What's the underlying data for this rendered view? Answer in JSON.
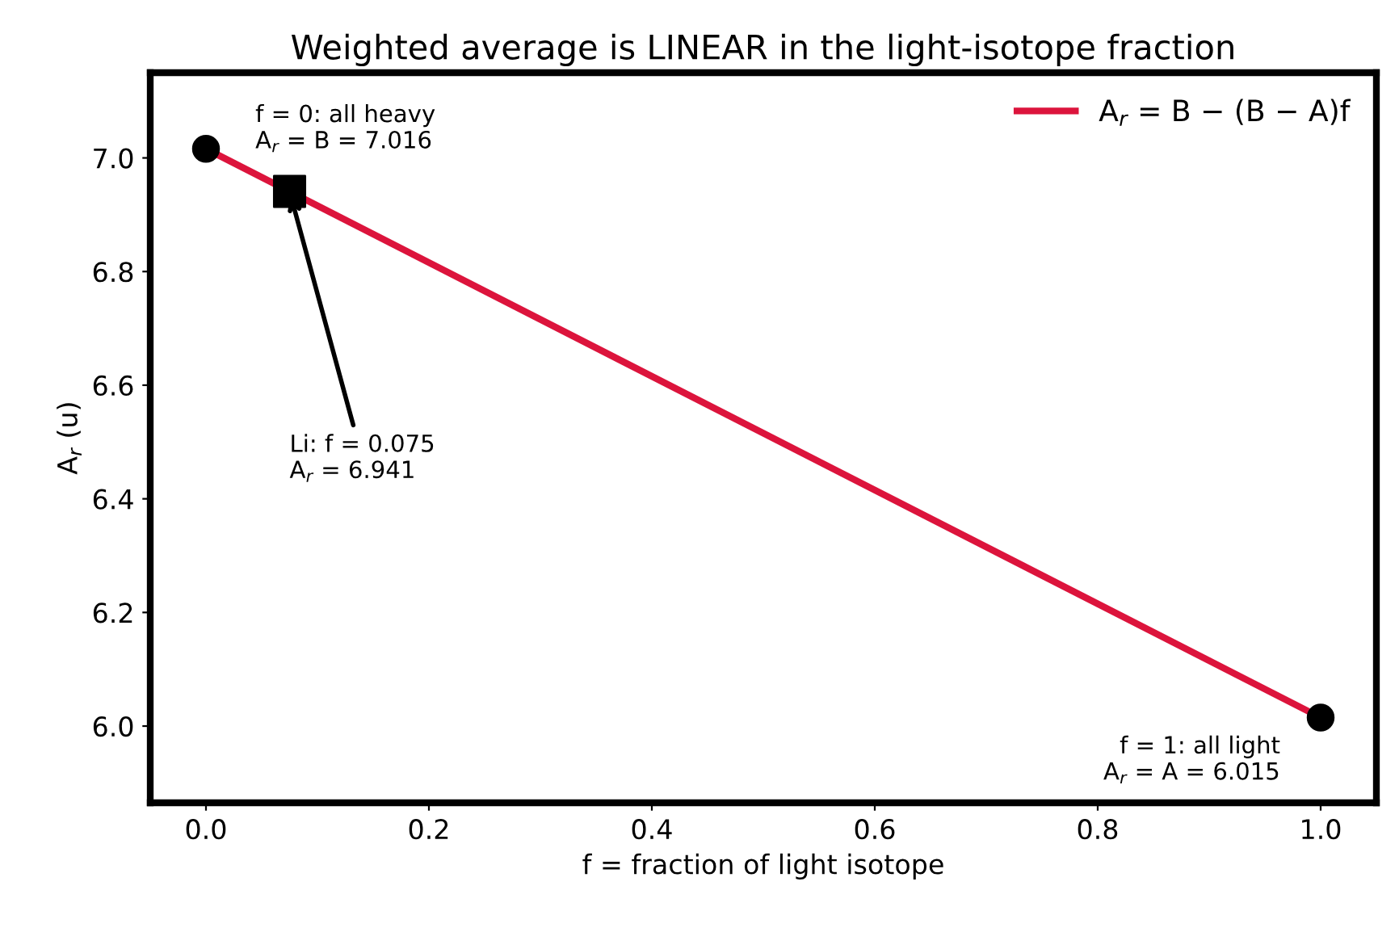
{
  "chart_data": {
    "type": "line",
    "title": "Weighted average is LINEAR in the light-isotope fraction",
    "xlabel": "f = fraction of light isotope",
    "ylabel": "A$_{r}$ (u)",
    "series": [
      {
        "name": "A$_{r}$ = B − (B − A)f",
        "color": "#dc143c",
        "x": [
          0,
          1
        ],
        "values": [
          7.016,
          6.015
        ],
        "marker": "none"
      },
      {
        "type": "scatter",
        "color": "#000000",
        "x": [
          0,
          1
        ],
        "values": [
          7.016,
          6.015
        ],
        "marker": "circle"
      },
      {
        "type": "scatter",
        "color": "#000000",
        "x": [
          0.075
        ],
        "values": [
          6.941
        ],
        "marker": "square"
      }
    ],
    "annotations": [
      {
        "text": "f = 0: all heavy\nA$_{r}$ = B = 7.016",
        "x": 0,
        "y": 7.016
      },
      {
        "text": "Li: f = 0.075\nA$_{r}$ = 6.941",
        "x": 0.075,
        "y": 6.941
      },
      {
        "text": "f = 1: all light\nA$_{r}$ = A = 6.015",
        "x": 1,
        "y": 6.015
      }
    ],
    "xlim": [
      -0.05,
      1.05
    ],
    "ylim": [
      5.865,
      7.15
    ],
    "xticks": [
      {
        "value": 0,
        "label": "0.0"
      },
      {
        "value": 0.2,
        "label": "0.2"
      },
      {
        "value": 0.4,
        "label": "0.4"
      },
      {
        "value": 0.6,
        "label": "0.6"
      },
      {
        "value": 0.8,
        "label": "0.8"
      },
      {
        "value": 1,
        "label": "1.0"
      }
    ],
    "yticks": [
      {
        "value": 6,
        "label": "6.0"
      },
      {
        "value": 6.2,
        "label": "6.2"
      },
      {
        "value": 6.4,
        "label": "6.4"
      },
      {
        "value": 6.6,
        "label": "6.6"
      },
      {
        "value": 6.8,
        "label": "6.8"
      },
      {
        "value": 7,
        "label": "7.0"
      }
    ],
    "grid": false,
    "legend": "top right"
  }
}
